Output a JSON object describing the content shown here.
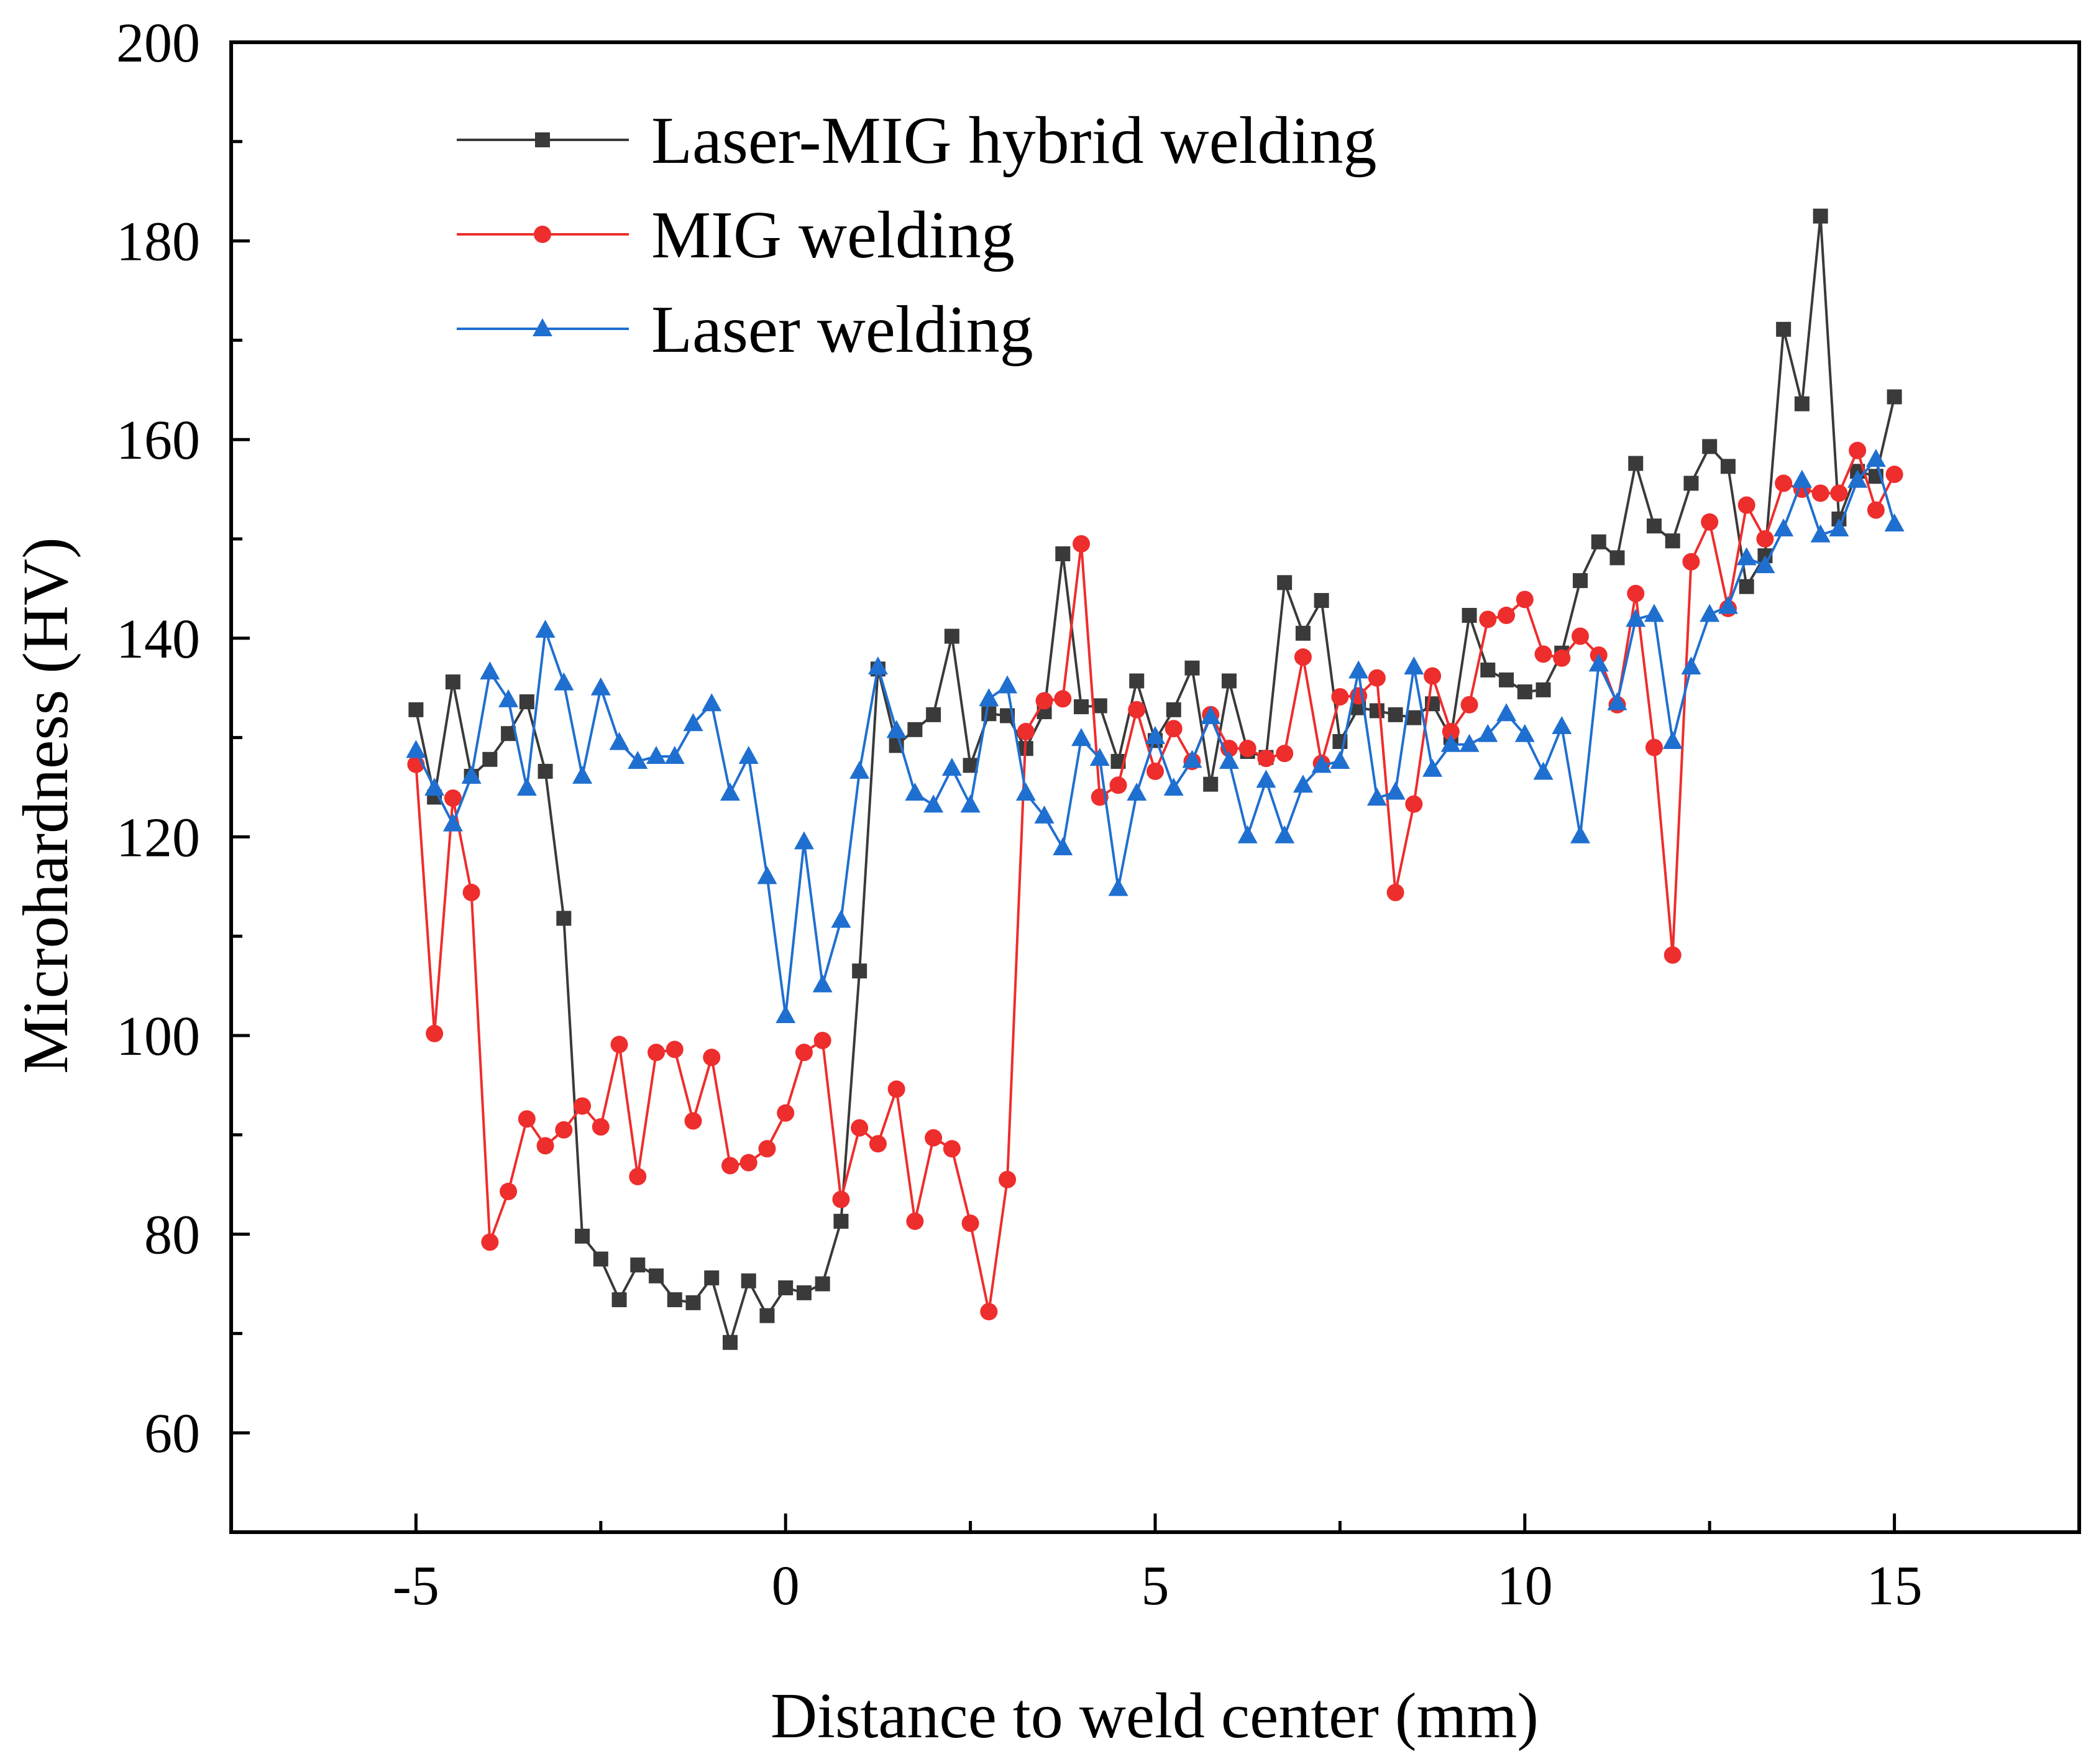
{
  "chart_data": {
    "type": "line",
    "title": "",
    "xlabel": "Distance to weld center (mm)",
    "ylabel": "Microhardness (HV)",
    "xlim": [
      -7.5,
      17.5
    ],
    "ylim": [
      50,
      200
    ],
    "xticks": [
      -5,
      0,
      5,
      10,
      15
    ],
    "xtick_labels": [
      "-5",
      "0",
      "5",
      "10",
      "15"
    ],
    "yticks": [
      60,
      80,
      100,
      120,
      140,
      160,
      180,
      200
    ],
    "ytick_labels": [
      "60",
      "80",
      "100",
      "120",
      "140",
      "160",
      "180",
      "200"
    ],
    "x_minor_step": 2.5,
    "y_minor_step": 10,
    "legend_position": "top-left",
    "x": [
      -5,
      -4.75,
      -4.5,
      -4.25,
      -4,
      -3.75,
      -3.5,
      -3.25,
      -3,
      -2.75,
      -2.5,
      -2.25,
      -2,
      -1.75,
      -1.5,
      -1.25,
      -1,
      -0.75,
      -0.5,
      -0.25,
      0,
      0.25,
      0.5,
      0.75,
      1,
      1.25,
      1.5,
      1.75,
      2,
      2.25,
      2.5,
      2.75,
      3,
      3.25,
      3.5,
      3.75,
      4,
      4.25,
      4.5,
      4.75,
      5,
      5.25,
      5.5,
      5.75,
      6,
      6.25,
      6.5,
      6.75,
      7,
      7.25,
      7.5,
      7.75,
      8,
      8.25,
      8.5,
      8.75,
      9,
      9.25,
      9.5,
      9.75,
      10,
      10.25,
      10.5,
      10.75,
      11,
      11.25,
      11.5,
      11.75,
      12,
      12.25,
      12.5,
      12.75,
      13,
      13.25,
      13.5,
      13.75,
      14,
      14.25,
      14.5,
      14.75,
      15
    ],
    "series": [
      {
        "name": "Laser-MIG hybrid welding",
        "color": "#3a3a3a",
        "marker": "square",
        "values": [
          132.8,
          124.0,
          135.6,
          126.1,
          127.8,
          130.4,
          133.6,
          126.6,
          111.8,
          79.8,
          77.5,
          73.4,
          76.9,
          75.8,
          73.4,
          73.1,
          75.6,
          69.1,
          75.3,
          71.8,
          74.6,
          74.1,
          75.0,
          81.3,
          106.5,
          136.9,
          129.2,
          130.8,
          132.3,
          140.2,
          127.2,
          132.4,
          132.2,
          128.9,
          132.6,
          148.5,
          133.1,
          133.2,
          127.6,
          135.7,
          129.7,
          132.8,
          137.0,
          125.3,
          135.7,
          128.6,
          128.0,
          145.6,
          140.5,
          143.8,
          129.6,
          133.0,
          132.7,
          132.3,
          132.0,
          133.4,
          130.0,
          142.3,
          136.8,
          135.8,
          134.6,
          134.8,
          138.5,
          145.8,
          149.7,
          148.1,
          157.6,
          151.3,
          149.8,
          155.6,
          159.3,
          157.3,
          145.2,
          148.3,
          171.1,
          163.6,
          182.5,
          152.0,
          156.8,
          156.3,
          164.3
        ]
      },
      {
        "name": "MIG welding",
        "color": "#ee2d2d",
        "marker": "circle",
        "values": [
          127.3,
          100.2,
          123.9,
          114.4,
          79.2,
          84.3,
          91.6,
          88.9,
          90.5,
          92.9,
          90.8,
          99.1,
          85.8,
          98.3,
          98.6,
          91.4,
          97.8,
          86.9,
          87.2,
          88.6,
          92.2,
          98.3,
          99.5,
          83.5,
          90.7,
          89.1,
          94.6,
          81.3,
          89.7,
          88.6,
          81.1,
          72.2,
          85.5,
          130.6,
          133.7,
          133.9,
          149.5,
          124.0,
          125.2,
          132.8,
          126.6,
          130.9,
          127.6,
          132.3,
          128.9,
          128.9,
          127.9,
          128.4,
          138.1,
          127.4,
          134.1,
          134.2,
          136.0,
          114.4,
          123.3,
          136.2,
          130.6,
          133.3,
          141.9,
          142.3,
          143.9,
          138.4,
          138.0,
          140.2,
          138.3,
          133.3,
          144.5,
          129.0,
          108.1,
          147.7,
          151.7,
          143.0,
          153.4,
          150.0,
          155.6,
          155.0,
          154.6,
          154.6,
          158.9,
          152.9,
          156.5
        ]
      },
      {
        "name": "Laser welding",
        "color": "#1f6fd0",
        "marker": "triangle",
        "values": [
          128.7,
          124.9,
          121.3,
          126.1,
          136.6,
          133.8,
          124.9,
          140.8,
          135.5,
          126.1,
          135.0,
          129.5,
          127.6,
          128.1,
          128.1,
          131.4,
          133.4,
          124.4,
          128.1,
          116.0,
          102.0,
          119.5,
          105.1,
          111.6,
          126.6,
          137.1,
          130.7,
          124.4,
          123.2,
          126.9,
          123.2,
          133.9,
          135.2,
          124.4,
          122.1,
          118.9,
          129.9,
          127.9,
          114.8,
          124.4,
          130.1,
          124.9,
          127.7,
          132.1,
          127.6,
          120.1,
          125.7,
          120.1,
          125.2,
          127.2,
          127.6,
          136.7,
          123.9,
          124.5,
          137.1,
          126.8,
          129.3,
          129.3,
          130.3,
          132.4,
          130.3,
          126.5,
          131.1,
          120.1,
          137.4,
          133.5,
          141.9,
          142.4,
          129.6,
          137.1,
          142.4,
          143.2,
          148.1,
          147.3,
          151.0,
          155.9,
          150.4,
          151.0,
          155.9,
          158.0,
          151.5
        ]
      }
    ]
  }
}
